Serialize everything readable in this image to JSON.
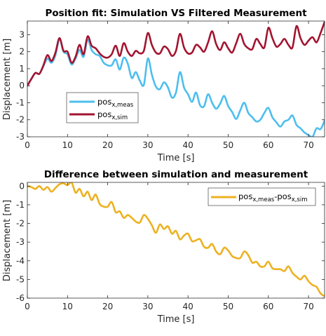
{
  "chart_data": [
    {
      "type": "line",
      "title": "Position fit: Simulation VS Filtered Measurement",
      "xlabel": "Time [s]",
      "ylabel": "Displacement [m]",
      "xlim": [
        0,
        74
      ],
      "ylim": [
        -3,
        3.8
      ],
      "xticks": [
        0,
        10,
        20,
        30,
        40,
        50,
        60,
        70
      ],
      "yticks": [
        -3,
        -2,
        -1,
        0,
        1,
        2,
        3
      ],
      "grid": false,
      "legend": "center-left",
      "series": [
        {
          "name": "pos",
          "name_sub": "x,meas",
          "color": "#4DBEEE",
          "x": [
            0,
            1,
            2,
            3,
            4,
            5,
            6,
            7,
            8,
            9,
            10,
            11,
            12,
            13,
            14,
            15,
            16,
            17,
            18,
            19,
            20,
            21,
            22,
            23,
            24,
            25,
            26,
            27,
            28,
            29,
            30,
            31,
            32,
            33,
            34,
            35,
            36,
            37,
            38,
            39,
            40,
            41,
            42,
            43,
            44,
            45,
            46,
            47,
            48,
            49,
            50,
            51,
            52,
            53,
            54,
            55,
            56,
            57,
            58,
            59,
            60,
            61,
            62,
            63,
            64,
            65,
            66,
            67,
            68,
            69,
            70,
            71,
            72,
            73,
            74
          ],
          "y": [
            0.0,
            0.4,
            0.75,
            0.7,
            1.15,
            1.6,
            1.35,
            1.8,
            2.75,
            2.0,
            1.85,
            1.25,
            1.6,
            2.1,
            1.7,
            2.7,
            2.1,
            1.85,
            1.75,
            1.35,
            1.2,
            1.2,
            1.55,
            0.95,
            1.65,
            1.3,
            0.45,
            0.8,
            0.3,
            0.05,
            1.6,
            0.65,
            -0.05,
            -0.2,
            0.2,
            -0.1,
            -0.7,
            -0.4,
            0.8,
            -0.1,
            -0.5,
            -0.95,
            -0.4,
            -1.15,
            -1.2,
            -0.5,
            -1.0,
            -1.35,
            -1.05,
            -0.6,
            -1.2,
            -1.55,
            -1.95,
            -1.45,
            -1.0,
            -1.6,
            -1.85,
            -2.1,
            -2.0,
            -1.6,
            -1.3,
            -1.85,
            -2.15,
            -2.4,
            -2.1,
            -2.0,
            -1.75,
            -2.3,
            -2.5,
            -2.75,
            -2.9,
            -3.0,
            -2.5,
            -2.55,
            -2.05
          ]
        },
        {
          "name": "pos",
          "name_sub": "x,sim",
          "color": "#A2142F",
          "x": [
            0,
            1,
            2,
            3,
            4,
            5,
            6,
            7,
            8,
            9,
            10,
            11,
            12,
            13,
            14,
            15,
            16,
            17,
            18,
            19,
            20,
            21,
            22,
            23,
            24,
            25,
            26,
            27,
            28,
            29,
            30,
            31,
            32,
            33,
            34,
            35,
            36,
            37,
            38,
            39,
            40,
            41,
            42,
            43,
            44,
            45,
            46,
            47,
            48,
            49,
            50,
            51,
            52,
            53,
            54,
            55,
            56,
            57,
            58,
            59,
            60,
            61,
            62,
            63,
            64,
            65,
            66,
            67,
            68,
            69,
            70,
            71,
            72,
            73,
            74
          ],
          "y": [
            0.0,
            0.4,
            0.75,
            0.7,
            1.2,
            1.8,
            1.45,
            1.95,
            2.8,
            2.05,
            2.0,
            1.35,
            1.7,
            2.4,
            1.85,
            2.9,
            2.35,
            2.2,
            1.9,
            1.7,
            1.65,
            1.85,
            2.35,
            1.75,
            2.5,
            2.0,
            1.75,
            2.05,
            1.9,
            2.05,
            3.1,
            2.4,
            1.95,
            1.9,
            2.3,
            2.15,
            1.75,
            2.05,
            3.05,
            2.25,
            1.9,
            1.95,
            2.4,
            2.25,
            2.0,
            2.55,
            3.2,
            2.45,
            2.1,
            2.55,
            2.2,
            1.95,
            2.5,
            3.05,
            2.45,
            2.2,
            2.15,
            2.75,
            2.45,
            2.25,
            3.4,
            2.8,
            2.3,
            2.45,
            2.75,
            2.4,
            2.25,
            3.5,
            2.8,
            2.4,
            2.65,
            2.85,
            2.55,
            3.1,
            3.75
          ]
        }
      ]
    },
    {
      "type": "line",
      "title": "Difference between simulation and measurement",
      "xlabel": "Time [s]",
      "ylabel": "Displacement [m]",
      "xlim": [
        0,
        74
      ],
      "ylim": [
        -6,
        0.2
      ],
      "xticks": [
        0,
        10,
        20,
        30,
        40,
        50,
        60,
        70
      ],
      "yticks": [
        -6,
        -5,
        -4,
        -3,
        -2,
        -1,
        0
      ],
      "grid": false,
      "legend": "top-right",
      "series": [
        {
          "name": "pos",
          "name_sub": "x,meas",
          "name_mid": "-pos",
          "name_sub2": "x,sim",
          "color": "#EDB120",
          "x": [
            0,
            1,
            2,
            3,
            4,
            5,
            6,
            7,
            8,
            9,
            10,
            11,
            12,
            13,
            14,
            15,
            16,
            17,
            18,
            19,
            20,
            21,
            22,
            23,
            24,
            25,
            26,
            27,
            28,
            29,
            30,
            31,
            32,
            33,
            34,
            35,
            36,
            37,
            38,
            39,
            40,
            41,
            42,
            43,
            44,
            45,
            46,
            47,
            48,
            49,
            50,
            51,
            52,
            53,
            54,
            55,
            56,
            57,
            58,
            59,
            60,
            61,
            62,
            63,
            64,
            65,
            66,
            67,
            68,
            69,
            70,
            71,
            72,
            73,
            74
          ],
          "y": [
            0.0,
            -0.05,
            -0.15,
            0.0,
            -0.2,
            -0.05,
            -0.3,
            -0.1,
            0.1,
            0.15,
            0.05,
            0.2,
            -0.35,
            -0.15,
            -0.55,
            -0.3,
            -0.75,
            -0.45,
            -0.95,
            -1.1,
            -1.1,
            -0.85,
            -1.4,
            -1.35,
            -1.7,
            -1.55,
            -1.7,
            -1.9,
            -1.95,
            -1.55,
            -1.75,
            -2.1,
            -2.5,
            -2.05,
            -2.3,
            -2.15,
            -2.55,
            -2.4,
            -2.85,
            -2.65,
            -2.55,
            -2.95,
            -2.9,
            -2.85,
            -3.25,
            -3.3,
            -3.1,
            -3.5,
            -3.65,
            -3.3,
            -3.45,
            -3.75,
            -3.85,
            -3.85,
            -3.5,
            -3.7,
            -4.1,
            -4.05,
            -4.3,
            -4.3,
            -4.05,
            -4.4,
            -4.45,
            -4.45,
            -4.55,
            -4.3,
            -4.65,
            -4.85,
            -5.0,
            -4.8,
            -5.1,
            -5.3,
            -5.4,
            -5.75,
            -5.9
          ]
        }
      ]
    }
  ]
}
